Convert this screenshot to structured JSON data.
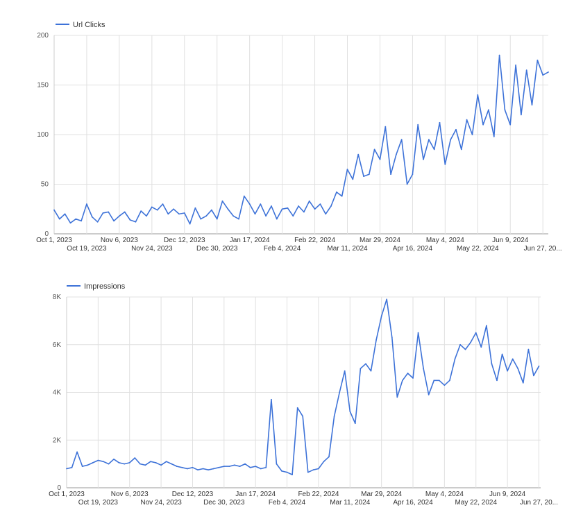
{
  "chart_data": [
    {
      "type": "line",
      "title": "",
      "xlabel": "",
      "ylabel": "",
      "legend": "top-left",
      "grid": true,
      "color": "#3d72d8",
      "xlim": [
        "2023-10-01",
        "2024-06-30"
      ],
      "ylim": [
        0,
        200
      ],
      "yticks": [
        0,
        50,
        100,
        150,
        200
      ],
      "ytick_labels": [
        "0",
        "50",
        "100",
        "150",
        "200"
      ],
      "xticks": [
        {
          "date": "2023-10-01",
          "label": "Oct 1, 2023"
        },
        {
          "date": "2023-10-19",
          "label": "Oct 19, 2023"
        },
        {
          "date": "2023-11-06",
          "label": "Nov 6, 2023"
        },
        {
          "date": "2023-11-24",
          "label": "Nov 24, 2023"
        },
        {
          "date": "2023-12-12",
          "label": "Dec 12, 2023"
        },
        {
          "date": "2023-12-30",
          "label": "Dec 30, 2023"
        },
        {
          "date": "2024-01-17",
          "label": "Jan 17, 2024"
        },
        {
          "date": "2024-02-04",
          "label": "Feb 4, 2024"
        },
        {
          "date": "2024-02-22",
          "label": "Feb 22, 2024"
        },
        {
          "date": "2024-03-11",
          "label": "Mar 11, 2024"
        },
        {
          "date": "2024-03-29",
          "label": "Mar 29, 2024"
        },
        {
          "date": "2024-04-16",
          "label": "Apr 16, 2024"
        },
        {
          "date": "2024-05-04",
          "label": "May 4, 2024"
        },
        {
          "date": "2024-05-22",
          "label": "May 22, 2024"
        },
        {
          "date": "2024-06-09",
          "label": "Jun 9, 2024"
        },
        {
          "date": "2024-06-27",
          "label": "Jun 27, 20..."
        }
      ],
      "series": [
        {
          "name": "Url Clicks",
          "points": [
            [
              "2023-10-01",
              24
            ],
            [
              "2023-10-04",
              15
            ],
            [
              "2023-10-07",
              20
            ],
            [
              "2023-10-10",
              11
            ],
            [
              "2023-10-13",
              15
            ],
            [
              "2023-10-16",
              13
            ],
            [
              "2023-10-19",
              30
            ],
            [
              "2023-10-22",
              17
            ],
            [
              "2023-10-25",
              12
            ],
            [
              "2023-10-28",
              21
            ],
            [
              "2023-10-31",
              22
            ],
            [
              "2023-11-03",
              13
            ],
            [
              "2023-11-06",
              18
            ],
            [
              "2023-11-09",
              22
            ],
            [
              "2023-11-12",
              14
            ],
            [
              "2023-11-15",
              12
            ],
            [
              "2023-11-18",
              23
            ],
            [
              "2023-11-21",
              18
            ],
            [
              "2023-11-24",
              27
            ],
            [
              "2023-11-27",
              24
            ],
            [
              "2023-11-30",
              30
            ],
            [
              "2023-12-03",
              20
            ],
            [
              "2023-12-06",
              25
            ],
            [
              "2023-12-09",
              20
            ],
            [
              "2023-12-12",
              21
            ],
            [
              "2023-12-15",
              10
            ],
            [
              "2023-12-18",
              26
            ],
            [
              "2023-12-21",
              15
            ],
            [
              "2023-12-24",
              18
            ],
            [
              "2023-12-27",
              24
            ],
            [
              "2023-12-30",
              15
            ],
            [
              "2024-01-02",
              33
            ],
            [
              "2024-01-05",
              25
            ],
            [
              "2024-01-08",
              18
            ],
            [
              "2024-01-11",
              15
            ],
            [
              "2024-01-14",
              38
            ],
            [
              "2024-01-17",
              30
            ],
            [
              "2024-01-20",
              20
            ],
            [
              "2024-01-23",
              30
            ],
            [
              "2024-01-26",
              18
            ],
            [
              "2024-01-29",
              28
            ],
            [
              "2024-02-01",
              15
            ],
            [
              "2024-02-04",
              25
            ],
            [
              "2024-02-07",
              26
            ],
            [
              "2024-02-10",
              18
            ],
            [
              "2024-02-13",
              28
            ],
            [
              "2024-02-16",
              22
            ],
            [
              "2024-02-19",
              33
            ],
            [
              "2024-02-22",
              25
            ],
            [
              "2024-02-25",
              30
            ],
            [
              "2024-02-28",
              20
            ],
            [
              "2024-03-02",
              28
            ],
            [
              "2024-03-05",
              42
            ],
            [
              "2024-03-08",
              38
            ],
            [
              "2024-03-11",
              65
            ],
            [
              "2024-03-14",
              55
            ],
            [
              "2024-03-17",
              80
            ],
            [
              "2024-03-20",
              58
            ],
            [
              "2024-03-23",
              60
            ],
            [
              "2024-03-26",
              85
            ],
            [
              "2024-03-29",
              75
            ],
            [
              "2024-04-01",
              108
            ],
            [
              "2024-04-04",
              60
            ],
            [
              "2024-04-07",
              80
            ],
            [
              "2024-04-10",
              95
            ],
            [
              "2024-04-13",
              50
            ],
            [
              "2024-04-16",
              60
            ],
            [
              "2024-04-19",
              110
            ],
            [
              "2024-04-22",
              75
            ],
            [
              "2024-04-25",
              95
            ],
            [
              "2024-04-28",
              85
            ],
            [
              "2024-05-01",
              112
            ],
            [
              "2024-05-04",
              70
            ],
            [
              "2024-05-07",
              95
            ],
            [
              "2024-05-10",
              105
            ],
            [
              "2024-05-13",
              85
            ],
            [
              "2024-05-16",
              115
            ],
            [
              "2024-05-19",
              100
            ],
            [
              "2024-05-22",
              140
            ],
            [
              "2024-05-25",
              110
            ],
            [
              "2024-05-28",
              125
            ],
            [
              "2024-05-31",
              98
            ],
            [
              "2024-06-03",
              180
            ],
            [
              "2024-06-06",
              125
            ],
            [
              "2024-06-09",
              110
            ],
            [
              "2024-06-12",
              170
            ],
            [
              "2024-06-15",
              120
            ],
            [
              "2024-06-18",
              165
            ],
            [
              "2024-06-21",
              130
            ],
            [
              "2024-06-24",
              175
            ],
            [
              "2024-06-27",
              160
            ],
            [
              "2024-06-30",
              163
            ]
          ]
        }
      ]
    },
    {
      "type": "line",
      "title": "",
      "xlabel": "",
      "ylabel": "",
      "legend": "top-left",
      "grid": true,
      "color": "#3d72d8",
      "xlim": [
        "2023-10-01",
        "2024-06-28"
      ],
      "ylim": [
        0,
        8000
      ],
      "yticks": [
        0,
        2000,
        4000,
        6000,
        8000
      ],
      "ytick_labels": [
        "0",
        "2K",
        "4K",
        "6K",
        "8K"
      ],
      "xticks": [
        {
          "date": "2023-10-01",
          "label": "Oct 1, 2023"
        },
        {
          "date": "2023-10-19",
          "label": "Oct 19, 2023"
        },
        {
          "date": "2023-11-06",
          "label": "Nov 6, 2023"
        },
        {
          "date": "2023-11-24",
          "label": "Nov 24, 2023"
        },
        {
          "date": "2023-12-12",
          "label": "Dec 12, 2023"
        },
        {
          "date": "2023-12-30",
          "label": "Dec 30, 2023"
        },
        {
          "date": "2024-01-17",
          "label": "Jan 17, 2024"
        },
        {
          "date": "2024-02-04",
          "label": "Feb 4, 2024"
        },
        {
          "date": "2024-02-22",
          "label": "Feb 22, 2024"
        },
        {
          "date": "2024-03-11",
          "label": "Mar 11, 2024"
        },
        {
          "date": "2024-03-29",
          "label": "Mar 29, 2024"
        },
        {
          "date": "2024-04-16",
          "label": "Apr 16, 2024"
        },
        {
          "date": "2024-05-04",
          "label": "May 4, 2024"
        },
        {
          "date": "2024-05-22",
          "label": "May 22, 2024"
        },
        {
          "date": "2024-06-09",
          "label": "Jun 9, 2024"
        },
        {
          "date": "2024-06-27",
          "label": "Jun 27, 20..."
        }
      ],
      "series": [
        {
          "name": "Impressions",
          "points": [
            [
              "2023-10-01",
              800
            ],
            [
              "2023-10-04",
              850
            ],
            [
              "2023-10-07",
              1500
            ],
            [
              "2023-10-10",
              900
            ],
            [
              "2023-10-13",
              950
            ],
            [
              "2023-10-16",
              1050
            ],
            [
              "2023-10-19",
              1150
            ],
            [
              "2023-10-22",
              1100
            ],
            [
              "2023-10-25",
              1000
            ],
            [
              "2023-10-28",
              1200
            ],
            [
              "2023-10-31",
              1050
            ],
            [
              "2023-11-03",
              1000
            ],
            [
              "2023-11-06",
              1050
            ],
            [
              "2023-11-09",
              1250
            ],
            [
              "2023-11-12",
              1000
            ],
            [
              "2023-11-15",
              950
            ],
            [
              "2023-11-18",
              1100
            ],
            [
              "2023-11-21",
              1050
            ],
            [
              "2023-11-24",
              950
            ],
            [
              "2023-11-27",
              1100
            ],
            [
              "2023-11-30",
              1000
            ],
            [
              "2023-12-03",
              900
            ],
            [
              "2023-12-06",
              850
            ],
            [
              "2023-12-09",
              800
            ],
            [
              "2023-12-12",
              850
            ],
            [
              "2023-12-15",
              750
            ],
            [
              "2023-12-18",
              800
            ],
            [
              "2023-12-21",
              750
            ],
            [
              "2023-12-24",
              800
            ],
            [
              "2023-12-27",
              850
            ],
            [
              "2023-12-30",
              900
            ],
            [
              "2024-01-02",
              900
            ],
            [
              "2024-01-05",
              950
            ],
            [
              "2024-01-08",
              900
            ],
            [
              "2024-01-11",
              1000
            ],
            [
              "2024-01-14",
              850
            ],
            [
              "2024-01-17",
              900
            ],
            [
              "2024-01-20",
              800
            ],
            [
              "2024-01-23",
              850
            ],
            [
              "2024-01-26",
              3700
            ],
            [
              "2024-01-29",
              1000
            ],
            [
              "2024-02-01",
              700
            ],
            [
              "2024-02-04",
              650
            ],
            [
              "2024-02-07",
              550
            ],
            [
              "2024-02-10",
              3350
            ],
            [
              "2024-02-13",
              3000
            ],
            [
              "2024-02-16",
              650
            ],
            [
              "2024-02-19",
              750
            ],
            [
              "2024-02-22",
              800
            ],
            [
              "2024-02-25",
              1100
            ],
            [
              "2024-02-28",
              1300
            ],
            [
              "2024-03-02",
              3000
            ],
            [
              "2024-03-05",
              4000
            ],
            [
              "2024-03-08",
              4900
            ],
            [
              "2024-03-11",
              3200
            ],
            [
              "2024-03-14",
              2700
            ],
            [
              "2024-03-17",
              5000
            ],
            [
              "2024-03-20",
              5200
            ],
            [
              "2024-03-23",
              4900
            ],
            [
              "2024-03-26",
              6200
            ],
            [
              "2024-03-29",
              7200
            ],
            [
              "2024-04-01",
              7900
            ],
            [
              "2024-04-04",
              6300
            ],
            [
              "2024-04-07",
              3800
            ],
            [
              "2024-04-10",
              4500
            ],
            [
              "2024-04-13",
              4800
            ],
            [
              "2024-04-16",
              4600
            ],
            [
              "2024-04-19",
              6500
            ],
            [
              "2024-04-22",
              5000
            ],
            [
              "2024-04-25",
              3900
            ],
            [
              "2024-04-28",
              4500
            ],
            [
              "2024-05-01",
              4500
            ],
            [
              "2024-05-04",
              4300
            ],
            [
              "2024-05-07",
              4500
            ],
            [
              "2024-05-10",
              5400
            ],
            [
              "2024-05-13",
              6000
            ],
            [
              "2024-05-16",
              5800
            ],
            [
              "2024-05-19",
              6100
            ],
            [
              "2024-05-22",
              6500
            ],
            [
              "2024-05-25",
              5900
            ],
            [
              "2024-05-28",
              6800
            ],
            [
              "2024-05-31",
              5200
            ],
            [
              "2024-06-03",
              4500
            ],
            [
              "2024-06-06",
              5600
            ],
            [
              "2024-06-09",
              4900
            ],
            [
              "2024-06-12",
              5400
            ],
            [
              "2024-06-15",
              5000
            ],
            [
              "2024-06-18",
              4400
            ],
            [
              "2024-06-21",
              5800
            ],
            [
              "2024-06-24",
              4700
            ],
            [
              "2024-06-27",
              5100
            ]
          ]
        }
      ]
    }
  ]
}
